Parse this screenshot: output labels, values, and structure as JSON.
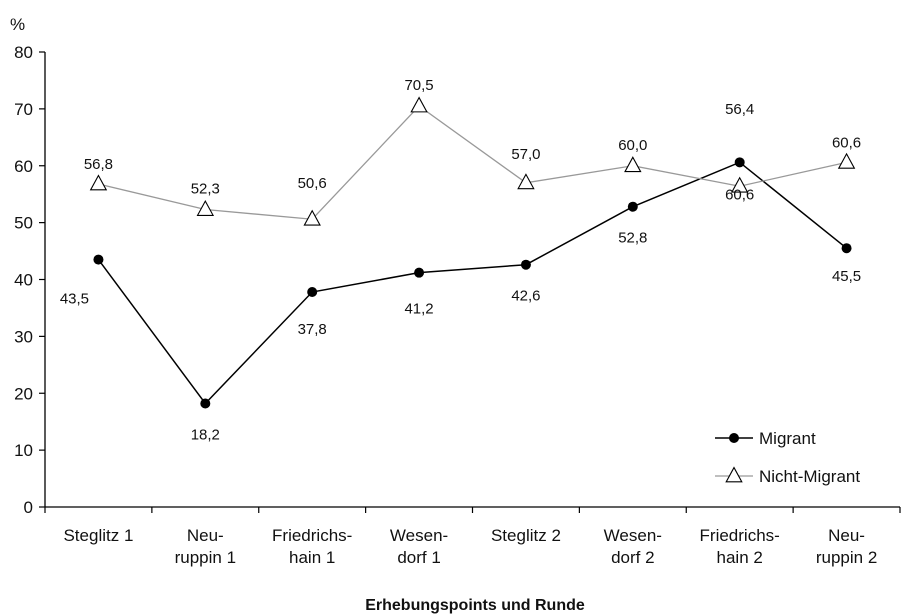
{
  "chart_data": {
    "type": "line",
    "title": "",
    "ylabel": "%",
    "xlabel": "Erhebungspoints und Runde",
    "ylim": [
      0,
      80
    ],
    "yticks": [
      0,
      10,
      20,
      30,
      40,
      50,
      60,
      70,
      80
    ],
    "grid": false,
    "legend_position": "bottom-right",
    "categories": [
      [
        "Steglitz 1"
      ],
      [
        "Neu-",
        "ruppin 1"
      ],
      [
        "Friedrichs-",
        "hain 1"
      ],
      [
        "Wesen-",
        "dorf 1"
      ],
      [
        "Steglitz 2"
      ],
      [
        "Wesen-",
        "dorf 2"
      ],
      [
        "Friedrichs-",
        "hain 2"
      ],
      [
        "Neu-",
        "ruppin 2"
      ]
    ],
    "series": [
      {
        "name": "Migrant",
        "marker": "filled-circle",
        "color": "#000000",
        "values": [
          43.5,
          18.2,
          37.8,
          41.2,
          42.6,
          52.8,
          60.6,
          45.5
        ],
        "labels": [
          "43,5",
          "18,2",
          "37,8",
          "41,2",
          "42,6",
          "52,8",
          "60,6",
          "45,5"
        ]
      },
      {
        "name": "Nicht-Migrant",
        "marker": "open-triangle",
        "color": "#999999",
        "values": [
          56.8,
          52.3,
          50.6,
          70.5,
          57.0,
          60.0,
          56.4,
          60.6
        ],
        "labels": [
          "56,8",
          "52,3",
          "50,6",
          "70,5",
          "57,0",
          "60,0",
          "56,4",
          "60,6"
        ]
      }
    ]
  }
}
